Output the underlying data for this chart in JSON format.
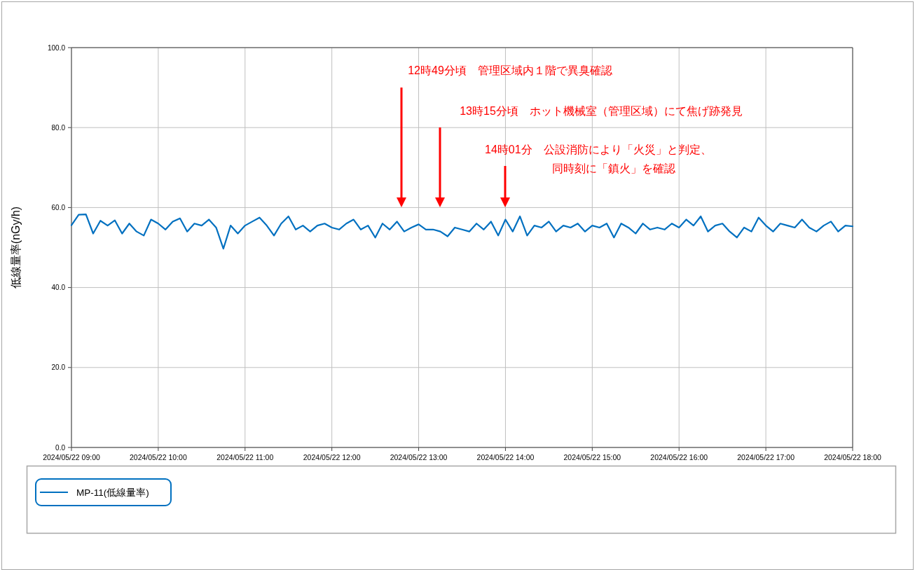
{
  "chart_data": {
    "type": "line",
    "ylabel": "低線量率(nGy/h)",
    "x": [
      "2024-05-22T09:00",
      "2024-05-22T09:05",
      "2024-05-22T09:10",
      "2024-05-22T09:15",
      "2024-05-22T09:20",
      "2024-05-22T09:25",
      "2024-05-22T09:30",
      "2024-05-22T09:35",
      "2024-05-22T09:40",
      "2024-05-22T09:45",
      "2024-05-22T09:50",
      "2024-05-22T09:55",
      "2024-05-22T10:00",
      "2024-05-22T10:05",
      "2024-05-22T10:10",
      "2024-05-22T10:15",
      "2024-05-22T10:20",
      "2024-05-22T10:25",
      "2024-05-22T10:30",
      "2024-05-22T10:35",
      "2024-05-22T10:40",
      "2024-05-22T10:45",
      "2024-05-22T10:50",
      "2024-05-22T10:55",
      "2024-05-22T11:00",
      "2024-05-22T11:05",
      "2024-05-22T11:10",
      "2024-05-22T11:15",
      "2024-05-22T11:20",
      "2024-05-22T11:25",
      "2024-05-22T11:30",
      "2024-05-22T11:35",
      "2024-05-22T11:40",
      "2024-05-22T11:45",
      "2024-05-22T11:50",
      "2024-05-22T11:55",
      "2024-05-22T12:00",
      "2024-05-22T12:05",
      "2024-05-22T12:10",
      "2024-05-22T12:15",
      "2024-05-22T12:20",
      "2024-05-22T12:25",
      "2024-05-22T12:30",
      "2024-05-22T12:35",
      "2024-05-22T12:40",
      "2024-05-22T12:45",
      "2024-05-22T12:50",
      "2024-05-22T12:55",
      "2024-05-22T13:00",
      "2024-05-22T13:05",
      "2024-05-22T13:10",
      "2024-05-22T13:15",
      "2024-05-22T13:20",
      "2024-05-22T13:25",
      "2024-05-22T13:30",
      "2024-05-22T13:35",
      "2024-05-22T13:40",
      "2024-05-22T13:45",
      "2024-05-22T13:50",
      "2024-05-22T13:55",
      "2024-05-22T14:00",
      "2024-05-22T14:05",
      "2024-05-22T14:10",
      "2024-05-22T14:15",
      "2024-05-22T14:20",
      "2024-05-22T14:25",
      "2024-05-22T14:30",
      "2024-05-22T14:35",
      "2024-05-22T14:40",
      "2024-05-22T14:45",
      "2024-05-22T14:50",
      "2024-05-22T14:55",
      "2024-05-22T15:00",
      "2024-05-22T15:05",
      "2024-05-22T15:10",
      "2024-05-22T15:15",
      "2024-05-22T15:20",
      "2024-05-22T15:25",
      "2024-05-22T15:30",
      "2024-05-22T15:35",
      "2024-05-22T15:40",
      "2024-05-22T15:45",
      "2024-05-22T15:50",
      "2024-05-22T15:55",
      "2024-05-22T16:00",
      "2024-05-22T16:05",
      "2024-05-22T16:10",
      "2024-05-22T16:15",
      "2024-05-22T16:20",
      "2024-05-22T16:25",
      "2024-05-22T16:30",
      "2024-05-22T16:35",
      "2024-05-22T16:40",
      "2024-05-22T16:45",
      "2024-05-22T16:50",
      "2024-05-22T16:55",
      "2024-05-22T17:00",
      "2024-05-22T17:05",
      "2024-05-22T17:10",
      "2024-05-22T17:15",
      "2024-05-22T17:20",
      "2024-05-22T17:25",
      "2024-05-22T17:30",
      "2024-05-22T17:35",
      "2024-05-22T17:40",
      "2024-05-22T17:45",
      "2024-05-22T17:50",
      "2024-05-22T17:55",
      "2024-05-22T18:00"
    ],
    "series": [
      {
        "name": "MP-11(低線量率)",
        "color": "#0070c0",
        "values": [
          55.6,
          58.2,
          58.3,
          53.5,
          56.7,
          55.5,
          56.8,
          53.5,
          56.0,
          54.0,
          53.0,
          57.0,
          56.0,
          54.5,
          56.5,
          57.3,
          54.0,
          56.0,
          55.5,
          57.0,
          55.0,
          49.7,
          55.5,
          53.5,
          55.5,
          56.5,
          57.5,
          55.5,
          53.0,
          56.0,
          57.8,
          54.5,
          55.5,
          54.0,
          55.5,
          56.0,
          55.0,
          54.5,
          56.0,
          57.0,
          54.5,
          55.5,
          52.5,
          56.0,
          54.5,
          56.5,
          54.0,
          55.0,
          55.8,
          54.5,
          54.5,
          54.0,
          52.8,
          55.0,
          54.5,
          54.0,
          56.0,
          54.5,
          56.5,
          53.0,
          57.0,
          54.0,
          57.8,
          53.0,
          55.5,
          55.0,
          56.5,
          54.0,
          55.5,
          55.0,
          56.0,
          54.0,
          55.5,
          55.0,
          56.0,
          52.5,
          56.0,
          55.0,
          53.5,
          56.0,
          54.5,
          55.0,
          54.5,
          56.0,
          55.0,
          57.0,
          55.5,
          57.8,
          54.0,
          55.5,
          56.0,
          54.0,
          52.5,
          55.0,
          54.0,
          57.5,
          55.5,
          54.0,
          56.0,
          55.5,
          55.0,
          57.0,
          55.0,
          54.0,
          55.5,
          56.5,
          54.0,
          55.5,
          55.3
        ]
      }
    ],
    "xlim": [
      "2024-05-22T09:00",
      "2024-05-22T18:00"
    ],
    "xticks": [
      {
        "value": "2024-05-22T09:00",
        "label": "2024/05/22 09:00"
      },
      {
        "value": "2024-05-22T10:00",
        "label": "2024/05/22 10:00"
      },
      {
        "value": "2024-05-22T11:00",
        "label": "2024/05/22 11:00"
      },
      {
        "value": "2024-05-22T12:00",
        "label": "2024/05/22 12:00"
      },
      {
        "value": "2024-05-22T13:00",
        "label": "2024/05/22 13:00"
      },
      {
        "value": "2024-05-22T14:00",
        "label": "2024/05/22 14:00"
      },
      {
        "value": "2024-05-22T15:00",
        "label": "2024/05/22 15:00"
      },
      {
        "value": "2024-05-22T16:00",
        "label": "2024/05/22 16:00"
      },
      {
        "value": "2024-05-22T17:00",
        "label": "2024/05/22 17:00"
      },
      {
        "value": "2024-05-22T18:00",
        "label": "2024/05/22 18:00"
      }
    ],
    "ylim": [
      0,
      100
    ],
    "yticks": [
      {
        "value": 0,
        "label": "0.0"
      },
      {
        "value": 20,
        "label": "20.0"
      },
      {
        "value": 40,
        "label": "40.0"
      },
      {
        "value": 60,
        "label": "60.0"
      },
      {
        "value": 80,
        "label": "80.0"
      },
      {
        "value": 100,
        "label": "100.0"
      }
    ],
    "annotations": [
      "12時49分頃　管理区域内１階で異臭確認",
      "13時15分頃　ホット機械室（管理区域）にて焦げ跡発見",
      "14時01分　公設消防により「火災」と判定、同時刻に「鎮火」を確認"
    ],
    "grid": true,
    "legend": "bottom",
    "line_style": "solid",
    "marker": "none"
  }
}
